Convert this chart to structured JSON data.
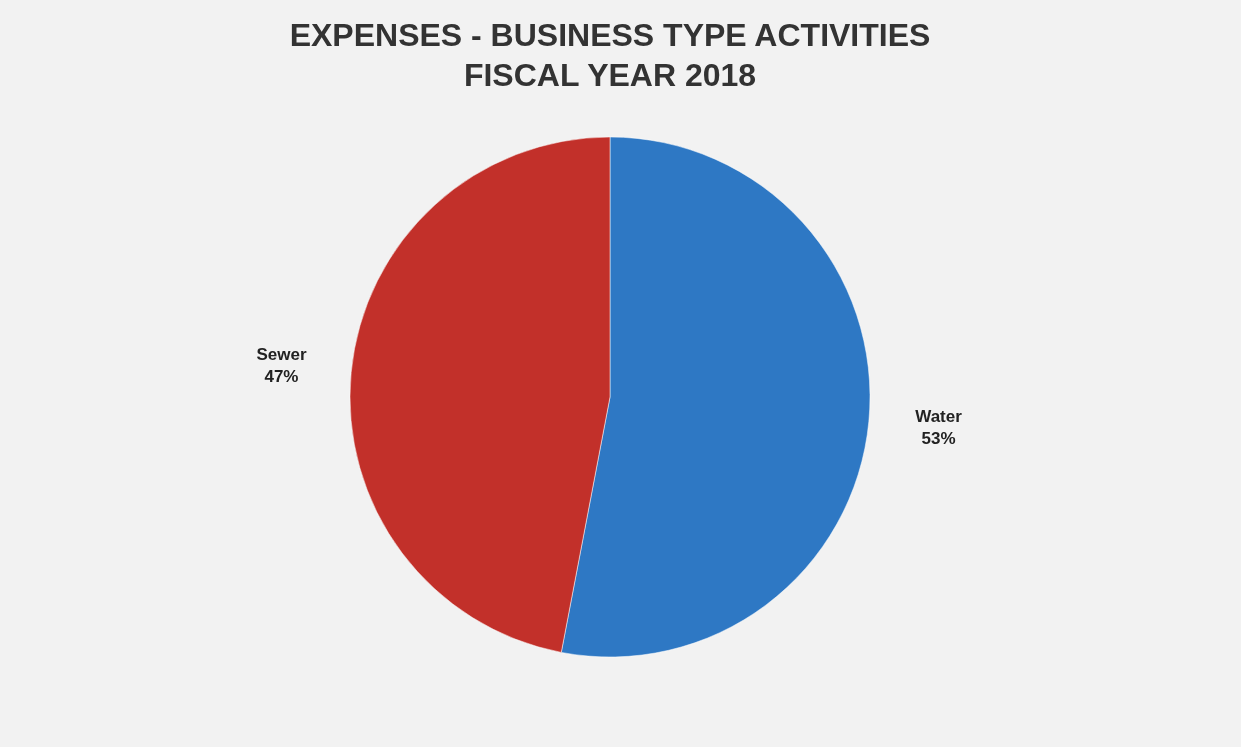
{
  "chart_data": {
    "type": "pie",
    "title": "EXPENSES - BUSINESS TYPE ACTIVITIES\nFISCAL YEAR 2018",
    "categories": [
      "Water",
      "Sewer"
    ],
    "values": [
      53,
      47
    ],
    "value_labels": [
      "53%",
      "47%"
    ],
    "colors": [
      "#2e78c4",
      "#c2302a"
    ],
    "legend": false
  }
}
